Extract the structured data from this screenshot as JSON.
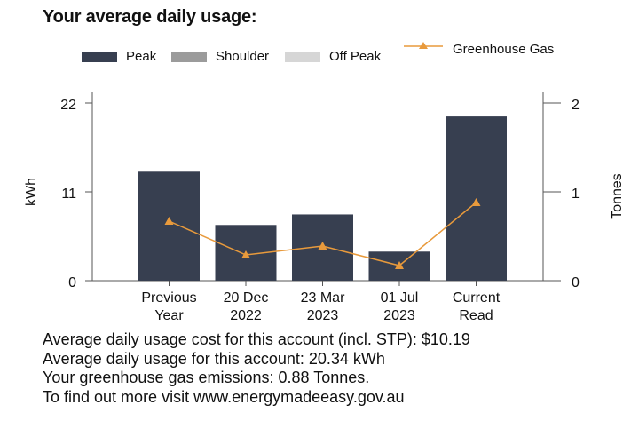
{
  "title": "Your average daily usage:",
  "legend": [
    {
      "label": "Peak",
      "color": "#373f50"
    },
    {
      "label": "Shoulder",
      "color": "#9b9b9b"
    },
    {
      "label": "Off Peak",
      "color": "#d6d6d6"
    }
  ],
  "legend_line": {
    "label": "Greenhouse Gas",
    "color": "#e89a3c"
  },
  "chart_data": {
    "type": "bar",
    "categories": [
      [
        "Previous",
        "Year"
      ],
      [
        "20 Dec",
        "2022"
      ],
      [
        "23 Mar",
        "2023"
      ],
      [
        "01 Jul",
        "2023"
      ],
      [
        "Current",
        "Read"
      ]
    ],
    "series": [
      {
        "name": "Peak",
        "axis": "left",
        "values": [
          13.5,
          6.9,
          8.2,
          3.6,
          20.34
        ]
      },
      {
        "name": "Greenhouse Gas",
        "axis": "right",
        "type": "line",
        "values": [
          0.67,
          0.29,
          0.39,
          0.17,
          0.88
        ]
      }
    ],
    "ylabel": "kWh",
    "y2label": "Tonnes",
    "ylim": [
      0,
      22
    ],
    "y2lim": [
      0,
      2
    ],
    "yticks": [
      0,
      11,
      22
    ],
    "y2ticks": [
      0,
      1,
      2
    ],
    "bar_color": "#373f50",
    "line_color": "#e89a3c"
  },
  "summary": [
    "Average daily usage cost for this account (incl. STP): $10.19",
    "Average daily usage for this account: 20.34 kWh",
    "Your greenhouse gas emissions: 0.88 Tonnes.",
    "To find out more visit www.energymadeeasy.gov.au"
  ]
}
